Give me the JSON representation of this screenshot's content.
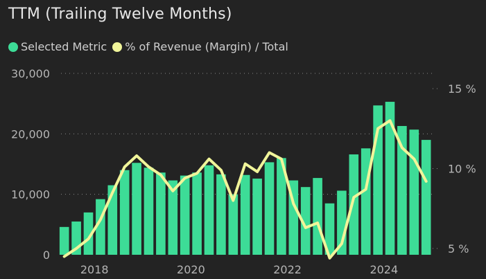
{
  "title": "TTM (Trailing Twelve Months)",
  "legend": [
    {
      "label": "Selected Metric",
      "color": "#3ddc97"
    },
    {
      "label": "% of Revenue (Margin) / Total",
      "color": "#f1f59a"
    }
  ],
  "chart_data": {
    "type": "bar",
    "x": [
      "2017 Q2",
      "2017 Q3",
      "2017 Q4",
      "2018 Q1",
      "2018 Q2",
      "2018 Q3",
      "2018 Q4",
      "2019 Q1",
      "2019 Q2",
      "2019 Q3",
      "2019 Q4",
      "2020 Q1",
      "2020 Q2",
      "2020 Q3",
      "2020 Q4",
      "2021 Q1",
      "2021 Q2",
      "2021 Q3",
      "2021 Q4",
      "2022 Q1",
      "2022 Q2",
      "2022 Q3",
      "2022 Q4",
      "2023 Q1",
      "2023 Q2",
      "2023 Q3",
      "2023 Q4",
      "2024 Q1",
      "2024 Q2",
      "2024 Q3",
      "2024 Q4"
    ],
    "series": [
      {
        "name": "Selected Metric",
        "axis": "left",
        "type": "bar",
        "values": [
          4600,
          5500,
          7000,
          9200,
          11500,
          14000,
          15200,
          14400,
          13600,
          12300,
          13100,
          13600,
          14800,
          13300,
          10000,
          13200,
          12600,
          15300,
          16000,
          12300,
          11200,
          12700,
          8500,
          10600,
          16600,
          17600,
          24700,
          25300,
          21300,
          20700,
          19000
        ]
      },
      {
        "name": "% of Revenue (Margin) / Total",
        "axis": "right",
        "type": "line",
        "values": [
          4.5,
          5.0,
          5.6,
          6.8,
          8.5,
          10.1,
          10.8,
          10.1,
          9.6,
          8.6,
          9.4,
          9.7,
          10.6,
          9.9,
          8.0,
          10.3,
          9.8,
          11.0,
          10.6,
          7.8,
          6.3,
          6.6,
          4.4,
          5.3,
          8.2,
          8.7,
          12.5,
          13.0,
          11.3,
          10.6,
          9.2
        ]
      }
    ],
    "left_axis": {
      "ticks": [
        "0",
        "10,000",
        "20,000",
        "30,000"
      ],
      "ylim": [
        0,
        30000
      ]
    },
    "right_axis": {
      "ticks": [
        "5 %",
        "10 %",
        "15 %"
      ],
      "ylim": [
        4.0,
        15.0
      ]
    },
    "x_ticks": [
      "2018",
      "2020",
      "2022",
      "2024"
    ],
    "grid": true,
    "legend_position": "top-left"
  }
}
